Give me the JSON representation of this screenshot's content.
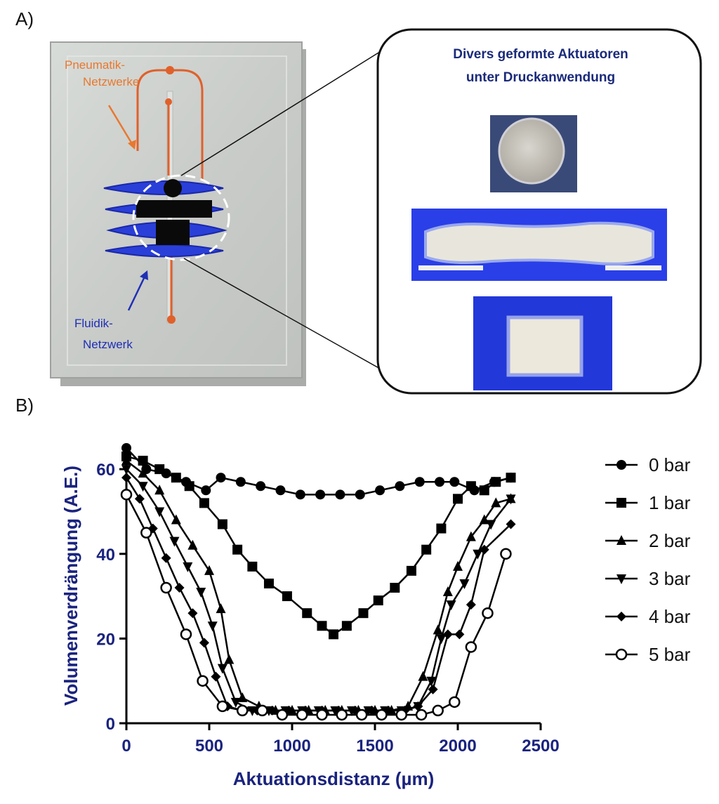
{
  "panel_a": {
    "label": "A)",
    "pneumatic_label": [
      "Pneumatik-",
      "Netzwerke"
    ],
    "fluidic_label": [
      "Fluidik-",
      "Netzwerk"
    ],
    "inset_title": [
      "Divers geformte Aktuatoren",
      "unter Druckanwendung"
    ],
    "colors": {
      "pneumatic": "#e8782f",
      "fluidic": "#1f2fb5",
      "inset_title": "#1a2a7a",
      "actuator": "#2640e0"
    }
  },
  "panel_b": {
    "label": "B)"
  },
  "chart_data": {
    "type": "line",
    "xlabel": "Aktuationsdistanz (µm)",
    "ylabel": "Volumenverdrängung (A.E.)",
    "xlim": [
      0,
      2500
    ],
    "ylim": [
      0,
      65
    ],
    "xticks": [
      0,
      500,
      1000,
      1500,
      2000,
      2500
    ],
    "yticks": [
      0,
      20,
      40,
      60
    ],
    "xtick_labels": [
      "0",
      "500",
      "1000",
      "1500",
      "2000",
      "2500"
    ],
    "ytick_labels": [
      "0",
      "20",
      "40",
      "60"
    ],
    "legend_position": "right",
    "axis_color": "#1a237e",
    "series": [
      {
        "name": "0 bar",
        "marker": "circle",
        "x": [
          0,
          120,
          240,
          360,
          480,
          570,
          690,
          810,
          930,
          1050,
          1170,
          1290,
          1410,
          1530,
          1650,
          1770,
          1890,
          1980,
          2100,
          2220,
          2320
        ],
        "y": [
          65,
          60,
          59,
          57,
          55,
          58,
          57,
          56,
          55,
          54,
          54,
          54,
          54,
          55,
          56,
          57,
          57,
          57,
          55,
          57,
          58
        ]
      },
      {
        "name": "1 bar",
        "marker": "square",
        "x": [
          0,
          100,
          200,
          300,
          380,
          470,
          580,
          670,
          760,
          860,
          970,
          1090,
          1180,
          1250,
          1330,
          1430,
          1520,
          1620,
          1720,
          1810,
          1900,
          2000,
          2080,
          2160,
          2230,
          2320
        ],
        "y": [
          63,
          62,
          60,
          58,
          56,
          52,
          47,
          41,
          37,
          33,
          30,
          26,
          23,
          21,
          23,
          26,
          29,
          32,
          36,
          41,
          46,
          53,
          56,
          55,
          57,
          58
        ]
      },
      {
        "name": "2 bar",
        "marker": "triangle-up",
        "x": [
          0,
          100,
          200,
          300,
          400,
          500,
          570,
          620,
          700,
          800,
          900,
          1000,
          1100,
          1200,
          1300,
          1400,
          1500,
          1600,
          1700,
          1790,
          1880,
          1940,
          2000,
          2080,
          2160,
          2230,
          2320
        ],
        "y": [
          62,
          59,
          55,
          48,
          42,
          36,
          27,
          15,
          6,
          4,
          3,
          3,
          3,
          3,
          3,
          3,
          3,
          3,
          4,
          11,
          22,
          31,
          37,
          44,
          48,
          52,
          53
        ]
      },
      {
        "name": "3 bar",
        "marker": "triangle-down",
        "x": [
          0,
          100,
          200,
          290,
          370,
          450,
          520,
          580,
          660,
          760,
          860,
          960,
          1060,
          1160,
          1260,
          1360,
          1460,
          1560,
          1660,
          1760,
          1840,
          1900,
          1960,
          2040,
          2120,
          2200,
          2320
        ],
        "y": [
          60,
          56,
          50,
          43,
          37,
          31,
          23,
          13,
          5,
          3,
          3,
          3,
          3,
          3,
          3,
          3,
          3,
          3,
          3,
          4,
          10,
          20,
          28,
          33,
          40,
          47,
          53
        ]
      },
      {
        "name": "4 bar",
        "marker": "diamond",
        "x": [
          0,
          80,
          160,
          240,
          320,
          400,
          470,
          540,
          610,
          700,
          790,
          880,
          980,
          1080,
          1180,
          1280,
          1380,
          1480,
          1580,
          1680,
          1760,
          1850,
          1940,
          2010,
          2080,
          2160,
          2320
        ],
        "y": [
          58,
          53,
          46,
          39,
          32,
          26,
          19,
          11,
          4,
          3,
          3,
          3,
          3,
          3,
          3,
          3,
          3,
          3,
          3,
          3,
          4,
          8,
          21,
          21,
          28,
          41,
          47
        ]
      },
      {
        "name": "5 bar",
        "marker": "circle-open",
        "x": [
          0,
          120,
          240,
          360,
          460,
          580,
          700,
          820,
          940,
          1060,
          1180,
          1300,
          1420,
          1540,
          1660,
          1780,
          1880,
          1980,
          2080,
          2180,
          2290
        ],
        "y": [
          54,
          45,
          32,
          21,
          10,
          4,
          3,
          3,
          2,
          2,
          2,
          2,
          2,
          2,
          2,
          2,
          3,
          5,
          18,
          26,
          40
        ]
      }
    ]
  }
}
